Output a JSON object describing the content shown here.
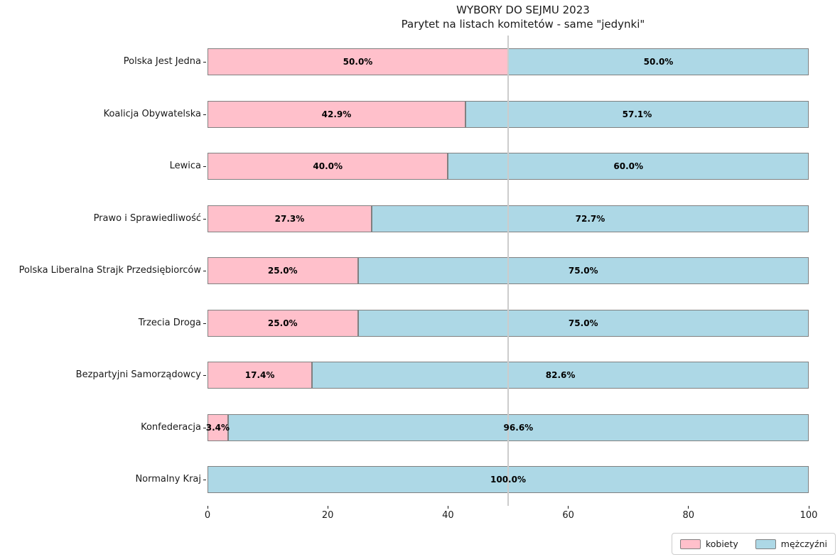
{
  "chart_data": {
    "type": "bar",
    "orientation": "horizontal",
    "stacked": true,
    "title": "WYBORY DO SEJMU 2023",
    "subtitle": "Parytet na listach komitetów - same \"jedynki\"",
    "categories": [
      "Polska Jest Jedna",
      "Koalicja Obywatelska",
      "Lewica",
      "Prawo i Sprawiedliwość",
      "Polska Liberalna Strajk Przedsiębiorców",
      "Trzecia Droga",
      "Bezpartyjni Samorządowcy",
      "Konfederacja",
      "Normalny Kraj"
    ],
    "series": [
      {
        "name": "kobiety",
        "color": "#ffc0cb",
        "values": [
          50.0,
          42.9,
          40.0,
          27.3,
          25.0,
          25.0,
          17.4,
          3.4,
          0.0
        ],
        "labels": [
          "50.0%",
          "42.9%",
          "40.0%",
          "27.3%",
          "25.0%",
          "25.0%",
          "17.4%",
          "3.4%",
          ""
        ]
      },
      {
        "name": "mężczyźni",
        "color": "#add8e6",
        "values": [
          50.0,
          57.1,
          60.0,
          72.7,
          75.0,
          75.0,
          82.6,
          96.6,
          100.0
        ],
        "labels": [
          "50.0%",
          "57.1%",
          "60.0%",
          "72.7%",
          "75.0%",
          "75.0%",
          "82.6%",
          "96.6%",
          "100.0%"
        ]
      }
    ],
    "xlim": [
      0,
      100
    ],
    "x_ticks": [
      "0",
      "20",
      "40",
      "60",
      "80",
      "100"
    ],
    "reference_line_x": 50,
    "grid": false,
    "legend_position": "lower right",
    "colors": {
      "bar_edge": "#808080",
      "reference_line": "#cccccc",
      "background": "#ffffff",
      "text": "#1a1a1a"
    }
  }
}
